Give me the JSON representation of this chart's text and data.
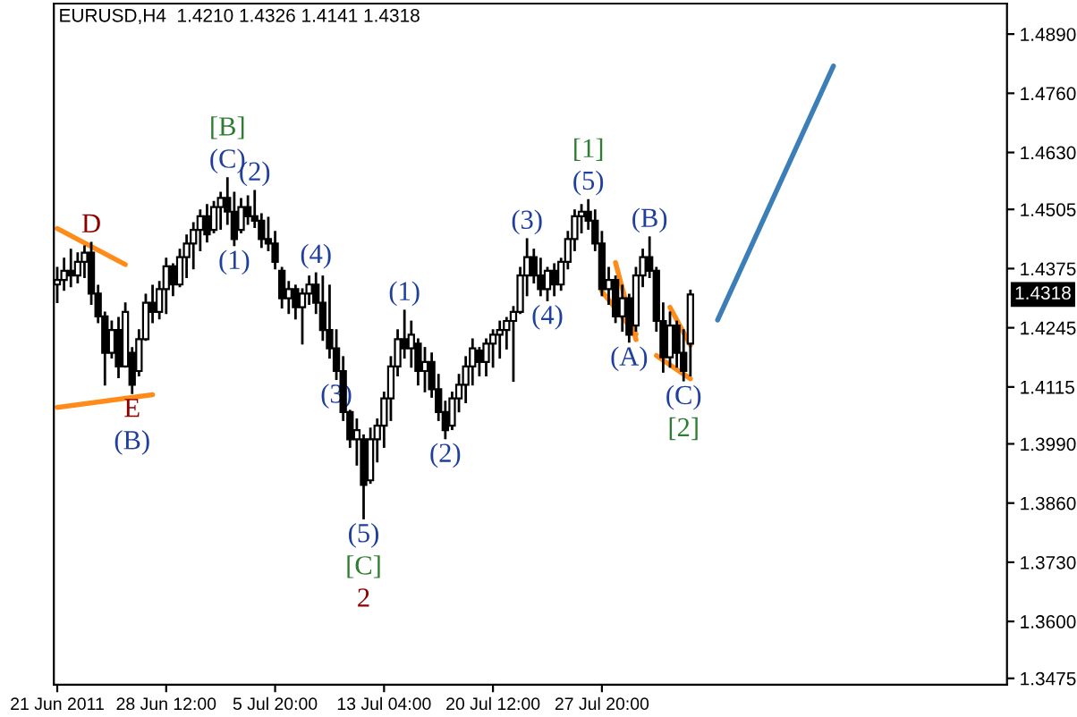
{
  "chart_data": {
    "type": "candlestick",
    "title": "EURUSD,H4  1.4210 1.4326 1.4141 1.4318",
    "color": "#000000",
    "categories": [
      "21 Jun 2011",
      null,
      null,
      null,
      null,
      null,
      null,
      null,
      null,
      null,
      null,
      null,
      null,
      null,
      null,
      null,
      "28 Jun 12:00",
      null,
      null,
      null,
      null,
      null,
      null,
      null,
      null,
      null,
      null,
      null,
      null,
      null,
      null,
      null,
      "5 Jul 20:00",
      null,
      null,
      null,
      null,
      null,
      null,
      null,
      null,
      null,
      null,
      null,
      null,
      null,
      null,
      null,
      "13 Jul 04:00",
      null,
      null,
      null,
      null,
      null,
      null,
      null,
      null,
      null,
      null,
      null,
      null,
      null,
      null,
      null,
      "20 Jul 12:00",
      null,
      null,
      null,
      null,
      null,
      null,
      null,
      null,
      null,
      null,
      null,
      null,
      null,
      null,
      null,
      "27 Jul 20:00",
      null,
      null,
      null,
      null,
      null,
      null,
      null,
      null,
      null,
      null,
      null,
      null,
      null,
      null,
      null,
      null,
      null,
      null,
      null,
      null,
      null,
      null,
      null,
      null,
      null,
      null,
      null,
      null,
      null,
      null,
      null,
      null,
      null,
      null,
      null,
      null,
      null,
      null,
      null,
      null,
      null,
      null,
      null,
      null,
      null,
      null,
      null,
      null,
      null,
      null,
      null,
      null,
      null,
      null,
      null,
      null,
      null,
      null,
      null
    ],
    "ohlc": [
      [
        1.434,
        1.4376,
        1.4302,
        1.435
      ],
      [
        1.435,
        1.4396,
        1.4329,
        1.437
      ],
      [
        1.437,
        1.4416,
        1.4337,
        1.436
      ],
      [
        1.436,
        1.4408,
        1.4345,
        1.439
      ],
      [
        1.439,
        1.4423,
        1.4357,
        1.441
      ],
      [
        1.441,
        1.4431,
        1.4298,
        1.432
      ],
      [
        1.432,
        1.4337,
        1.4258,
        1.427
      ],
      [
        1.427,
        1.4278,
        1.4121,
        1.419
      ],
      [
        1.419,
        1.4258,
        1.418,
        1.424
      ],
      [
        1.424,
        1.4266,
        1.4137,
        1.416
      ],
      [
        1.416,
        1.4298,
        1.416,
        1.428
      ],
      [
        1.419,
        1.42,
        1.4102,
        1.412
      ],
      [
        1.415,
        1.4239,
        1.4141,
        1.422
      ],
      [
        1.422,
        1.4317,
        1.4219,
        1.43
      ],
      [
        1.43,
        1.4337,
        1.4258,
        1.428
      ],
      [
        1.428,
        1.4345,
        1.4266,
        1.433
      ],
      [
        1.433,
        1.4396,
        1.4278,
        1.438
      ],
      [
        1.438,
        1.4384,
        1.4317,
        1.434
      ],
      [
        1.434,
        1.4416,
        1.4337,
        1.44
      ],
      [
        1.44,
        1.4447,
        1.4357,
        1.443
      ],
      [
        1.443,
        1.4474,
        1.4376,
        1.446
      ],
      [
        1.446,
        1.4502,
        1.4416,
        1.449
      ],
      [
        1.449,
        1.4514,
        1.4435,
        1.445
      ],
      [
        1.446,
        1.4521,
        1.4455,
        1.451
      ],
      [
        1.451,
        1.4541,
        1.4463,
        1.453
      ],
      [
        1.453,
        1.4573,
        1.4474,
        1.45
      ],
      [
        1.45,
        1.4541,
        1.4427,
        1.444
      ],
      [
        1.446,
        1.4527,
        1.4455,
        1.451
      ],
      [
        1.451,
        1.4533,
        1.4474,
        1.449
      ],
      [
        1.449,
        1.4545,
        1.4467,
        1.448
      ],
      [
        1.448,
        1.4494,
        1.4423,
        1.444
      ],
      [
        1.444,
        1.4486,
        1.4416,
        1.443
      ],
      [
        1.443,
        1.4455,
        1.4376,
        1.439
      ],
      [
        1.437,
        1.4376,
        1.429,
        1.431
      ],
      [
        1.431,
        1.4345,
        1.4278,
        1.433
      ],
      [
        1.433,
        1.4337,
        1.4266,
        1.429
      ],
      [
        1.429,
        1.4329,
        1.4211,
        1.432
      ],
      [
        1.432,
        1.4357,
        1.4298,
        1.434
      ],
      [
        1.434,
        1.4364,
        1.4278,
        1.43
      ],
      [
        1.43,
        1.4357,
        1.4219,
        1.424
      ],
      [
        1.424,
        1.4337,
        1.418,
        1.42
      ],
      [
        1.42,
        1.4239,
        1.4133,
        1.415
      ],
      [
        1.415,
        1.418,
        1.4043,
        1.406
      ],
      [
        1.406,
        1.4062,
        1.3984,
        1.4
      ],
      [
        1.4,
        1.4043,
        1.3945,
        1.402
      ],
      [
        1.4,
        1.4008,
        1.3827,
        1.39
      ],
      [
        1.391,
        1.4023,
        1.3905,
        1.4
      ],
      [
        1.4,
        1.4043,
        1.3952,
        1.403
      ],
      [
        1.403,
        1.4102,
        1.3984,
        1.409
      ],
      [
        1.409,
        1.418,
        1.4043,
        1.416
      ],
      [
        1.416,
        1.4239,
        1.4141,
        1.422
      ],
      [
        1.422,
        1.4282,
        1.418,
        1.42
      ],
      [
        1.42,
        1.4258,
        1.416,
        1.423
      ],
      [
        1.421,
        1.4219,
        1.4121,
        1.415
      ],
      [
        1.415,
        1.42,
        1.4106,
        1.417
      ],
      [
        1.417,
        1.4188,
        1.4094,
        1.411
      ],
      [
        1.411,
        1.4141,
        1.4043,
        1.406
      ],
      [
        1.406,
        1.4082,
        1.4003,
        1.402
      ],
      [
        1.403,
        1.4102,
        1.4023,
        1.409
      ],
      [
        1.409,
        1.4141,
        1.4062,
        1.412
      ],
      [
        1.412,
        1.418,
        1.4082,
        1.416
      ],
      [
        1.416,
        1.4219,
        1.4121,
        1.42
      ],
      [
        1.4195,
        1.42,
        1.4141,
        1.417
      ],
      [
        1.417,
        1.4219,
        1.4141,
        1.421
      ],
      [
        1.421,
        1.4239,
        1.416,
        1.423
      ],
      [
        1.423,
        1.4258,
        1.418,
        1.424
      ],
      [
        1.424,
        1.4266,
        1.42,
        1.426
      ],
      [
        1.426,
        1.429,
        1.4129,
        1.428
      ],
      [
        1.428,
        1.4376,
        1.4278,
        1.436
      ],
      [
        1.436,
        1.4439,
        1.4317,
        1.44
      ],
      [
        1.44,
        1.4416,
        1.4345,
        1.436
      ],
      [
        1.436,
        1.4396,
        1.4317,
        1.433
      ],
      [
        1.433,
        1.4376,
        1.4306,
        1.437
      ],
      [
        1.437,
        1.4384,
        1.4317,
        1.434
      ],
      [
        1.434,
        1.4396,
        1.4329,
        1.439
      ],
      [
        1.439,
        1.4455,
        1.4376,
        1.444
      ],
      [
        1.444,
        1.4502,
        1.4416,
        1.449
      ],
      [
        1.449,
        1.4514,
        1.4455,
        1.45
      ],
      [
        1.45,
        1.4525,
        1.4463,
        1.448
      ],
      [
        1.448,
        1.4502,
        1.4416,
        1.443
      ],
      [
        1.443,
        1.4455,
        1.4317,
        1.433
      ],
      [
        1.433,
        1.4376,
        1.4298,
        1.435
      ],
      [
        1.435,
        1.4357,
        1.4258,
        1.427
      ],
      [
        1.427,
        1.4337,
        1.4239,
        1.431
      ],
      [
        1.431,
        1.4317,
        1.4215,
        1.423
      ],
      [
        1.425,
        1.4376,
        1.4239,
        1.436
      ],
      [
        1.436,
        1.4416,
        1.4337,
        1.44
      ],
      [
        1.44,
        1.4443,
        1.4357,
        1.437
      ],
      [
        1.437,
        1.4376,
        1.4239,
        1.426
      ],
      [
        1.426,
        1.4298,
        1.4149,
        1.418
      ],
      [
        1.418,
        1.4278,
        1.416,
        1.425
      ],
      [
        1.425,
        1.4258,
        1.416,
        1.419
      ],
      [
        1.419,
        1.4239,
        1.413,
        1.415
      ],
      [
        1.421,
        1.4326,
        1.4141,
        1.4318
      ],
      null,
      null,
      null,
      null,
      null,
      null,
      null,
      null,
      null,
      null,
      null,
      null,
      null,
      null,
      null,
      null,
      null,
      null,
      null,
      null,
      null,
      null,
      null,
      null,
      null,
      null,
      null,
      null,
      null,
      null,
      null,
      null,
      null,
      null,
      null,
      null,
      null,
      null,
      null,
      null,
      null,
      null,
      null,
      null,
      null,
      null
    ],
    "series": [
      {
        "type": "line",
        "color": "#ff8c1a",
        "values": [
          1.4463,
          null,
          null,
          null,
          null,
          null,
          null,
          null,
          null,
          null,
          1.4384,
          null,
          null,
          null,
          null,
          null,
          null,
          null,
          null,
          null,
          null,
          null,
          null,
          null,
          null,
          null,
          null,
          null,
          null,
          null,
          null,
          null,
          null,
          null,
          null,
          null,
          null,
          null,
          null,
          null,
          null,
          null,
          null,
          null,
          null,
          null,
          null,
          null,
          null,
          null,
          null,
          null,
          null,
          null,
          null,
          null,
          null,
          null,
          null,
          null,
          null,
          null,
          null,
          null,
          null,
          null,
          null,
          null,
          null,
          null,
          null,
          null,
          null,
          null,
          null,
          null,
          null,
          null,
          null,
          null,
          null,
          null,
          null,
          null,
          null,
          null,
          null,
          null,
          null,
          null,
          null,
          null,
          null,
          null,
          null,
          null,
          null,
          null,
          null,
          null,
          null,
          null,
          null,
          null,
          null,
          null,
          null,
          null,
          null,
          null,
          null,
          null,
          null,
          null,
          null,
          null,
          null,
          null,
          null,
          null,
          null,
          null,
          null,
          null,
          null,
          null,
          null,
          null,
          null,
          null,
          null,
          null,
          null,
          null,
          null,
          null,
          null,
          null,
          null,
          null
        ]
      },
      {
        "type": "line",
        "color": "#ff8c1a",
        "values": [
          1.407,
          null,
          null,
          null,
          null,
          null,
          null,
          null,
          null,
          null,
          null,
          null,
          null,
          null,
          1.4098,
          null,
          null,
          null,
          null,
          null,
          null,
          null,
          null,
          null,
          null,
          null,
          null,
          null,
          null,
          null,
          null,
          null,
          null,
          null,
          null,
          null,
          null,
          null,
          null,
          null,
          null,
          null,
          null,
          null,
          null,
          null,
          null,
          null,
          null,
          null,
          null,
          null,
          null,
          null,
          null,
          null,
          null,
          null,
          null,
          null,
          null,
          null,
          null,
          null,
          null,
          null,
          null,
          null,
          null,
          null,
          null,
          null,
          null,
          null,
          null,
          null,
          null,
          null,
          null,
          null,
          null,
          null,
          null,
          null,
          null,
          null,
          null,
          null,
          null,
          null,
          null,
          null,
          null,
          null,
          null,
          null,
          null,
          null,
          null,
          null,
          null,
          null,
          null,
          null,
          null,
          null,
          null,
          null,
          null,
          null,
          null,
          null,
          null,
          null,
          null,
          null,
          null,
          null,
          null,
          null,
          null,
          null,
          null,
          null,
          null,
          null,
          null,
          null,
          null,
          null,
          null,
          null,
          null,
          null,
          null,
          null,
          null,
          null,
          null,
          null
        ]
      },
      {
        "type": "line",
        "color": "#ff8c1a",
        "values": [
          null,
          null,
          null,
          null,
          null,
          null,
          null,
          null,
          null,
          null,
          null,
          null,
          null,
          null,
          null,
          null,
          null,
          null,
          null,
          null,
          null,
          null,
          null,
          null,
          null,
          null,
          null,
          null,
          null,
          null,
          null,
          null,
          null,
          null,
          null,
          null,
          null,
          null,
          null,
          null,
          null,
          null,
          null,
          null,
          null,
          null,
          null,
          null,
          null,
          null,
          null,
          null,
          null,
          null,
          null,
          null,
          null,
          null,
          null,
          null,
          null,
          null,
          null,
          null,
          null,
          null,
          null,
          null,
          null,
          null,
          null,
          null,
          null,
          null,
          null,
          null,
          null,
          null,
          null,
          null,
          null,
          null,
          1.4388,
          null,
          null,
          1.4219,
          null,
          null,
          null,
          null,
          null,
          null,
          null,
          null,
          null,
          null,
          null,
          null,
          null,
          null,
          null,
          null,
          null,
          null,
          null,
          null,
          null,
          null,
          null,
          null,
          null,
          null,
          null,
          null,
          null,
          null,
          null,
          null,
          null,
          null,
          null,
          null,
          null,
          null,
          null,
          null,
          null,
          null,
          null,
          null,
          null,
          null,
          null,
          null,
          null,
          null,
          null,
          null,
          null,
          null
        ]
      },
      {
        "type": "line",
        "color": "#ff8c1a",
        "values": [
          null,
          null,
          null,
          null,
          null,
          null,
          null,
          null,
          null,
          null,
          null,
          null,
          null,
          null,
          null,
          null,
          null,
          null,
          null,
          null,
          null,
          null,
          null,
          null,
          null,
          null,
          null,
          null,
          null,
          null,
          null,
          null,
          null,
          null,
          null,
          null,
          null,
          null,
          null,
          null,
          null,
          null,
          null,
          null,
          null,
          null,
          null,
          null,
          null,
          null,
          null,
          null,
          null,
          null,
          null,
          null,
          null,
          null,
          null,
          null,
          null,
          null,
          null,
          null,
          null,
          null,
          null,
          null,
          null,
          null,
          null,
          null,
          null,
          null,
          null,
          null,
          null,
          null,
          null,
          null,
          1.4325,
          null,
          null,
          null,
          null,
          1.4231,
          null,
          null,
          null,
          null,
          null,
          null,
          null,
          null,
          null,
          null,
          null,
          null,
          null,
          null,
          null,
          null,
          null,
          null,
          null,
          null,
          null,
          null,
          null,
          null,
          null,
          null,
          null,
          null,
          null,
          null,
          null,
          null,
          null,
          null,
          null,
          null,
          null,
          null,
          null,
          null,
          null,
          null,
          null,
          null,
          null,
          null,
          null,
          null,
          null,
          null,
          null,
          null,
          null,
          null
        ]
      },
      {
        "type": "line",
        "color": "#ff8c1a",
        "values": [
          null,
          null,
          null,
          null,
          null,
          null,
          null,
          null,
          null,
          null,
          null,
          null,
          null,
          null,
          null,
          null,
          null,
          null,
          null,
          null,
          null,
          null,
          null,
          null,
          null,
          null,
          null,
          null,
          null,
          null,
          null,
          null,
          null,
          null,
          null,
          null,
          null,
          null,
          null,
          null,
          null,
          null,
          null,
          null,
          null,
          null,
          null,
          null,
          null,
          null,
          null,
          null,
          null,
          null,
          null,
          null,
          null,
          null,
          null,
          null,
          null,
          null,
          null,
          null,
          null,
          null,
          null,
          null,
          null,
          null,
          null,
          null,
          null,
          null,
          null,
          null,
          null,
          null,
          null,
          null,
          null,
          null,
          null,
          null,
          null,
          null,
          null,
          null,
          null,
          null,
          1.429,
          null,
          null,
          1.4207,
          null,
          null,
          null,
          null,
          null,
          null,
          null,
          null,
          null,
          null,
          null,
          null,
          null,
          null,
          null,
          null,
          null,
          null,
          null,
          null,
          null,
          null,
          null,
          null,
          null,
          null,
          null,
          null,
          null,
          null,
          null,
          null,
          null,
          null,
          null,
          null,
          null,
          null,
          null,
          null,
          null,
          null,
          null,
          null,
          null,
          null
        ]
      },
      {
        "type": "line",
        "color": "#ff8c1a",
        "values": [
          null,
          null,
          null,
          null,
          null,
          null,
          null,
          null,
          null,
          null,
          null,
          null,
          null,
          null,
          null,
          null,
          null,
          null,
          null,
          null,
          null,
          null,
          null,
          null,
          null,
          null,
          null,
          null,
          null,
          null,
          null,
          null,
          null,
          null,
          null,
          null,
          null,
          null,
          null,
          null,
          null,
          null,
          null,
          null,
          null,
          null,
          null,
          null,
          null,
          null,
          null,
          null,
          null,
          null,
          null,
          null,
          null,
          null,
          null,
          null,
          null,
          null,
          null,
          null,
          null,
          null,
          null,
          null,
          null,
          null,
          null,
          null,
          null,
          null,
          null,
          null,
          null,
          null,
          null,
          null,
          null,
          null,
          null,
          null,
          null,
          null,
          null,
          null,
          1.4184,
          null,
          null,
          null,
          null,
          1.4133,
          null,
          null,
          null,
          null,
          null,
          null,
          null,
          null,
          null,
          null,
          null,
          null,
          null,
          null,
          null,
          null,
          null,
          null,
          null,
          null,
          null,
          null,
          null,
          null,
          null,
          null,
          null,
          null,
          null,
          null,
          null,
          null,
          null,
          null,
          null,
          null,
          null,
          null,
          null,
          null,
          null,
          null,
          null,
          null,
          null,
          null
        ]
      },
      {
        "type": "line",
        "color": "#3c7fb8",
        "values": [
          null,
          null,
          null,
          null,
          null,
          null,
          null,
          null,
          null,
          null,
          null,
          null,
          null,
          null,
          null,
          null,
          null,
          null,
          null,
          null,
          null,
          null,
          null,
          null,
          null,
          null,
          null,
          null,
          null,
          null,
          null,
          null,
          null,
          null,
          null,
          null,
          null,
          null,
          null,
          null,
          null,
          null,
          null,
          null,
          null,
          null,
          null,
          null,
          null,
          null,
          null,
          null,
          null,
          null,
          null,
          null,
          null,
          null,
          null,
          null,
          null,
          null,
          null,
          null,
          null,
          null,
          null,
          null,
          null,
          null,
          null,
          null,
          null,
          null,
          null,
          null,
          null,
          null,
          null,
          null,
          null,
          null,
          null,
          null,
          null,
          null,
          null,
          null,
          null,
          null,
          null,
          null,
          null,
          null,
          null,
          null,
          null,
          1.4262,
          null,
          null,
          null,
          null,
          null,
          null,
          null,
          null,
          null,
          null,
          null,
          null,
          null,
          null,
          null,
          null,
          1.482,
          null,
          null,
          null,
          null,
          null,
          null,
          null,
          null,
          null,
          null,
          null,
          null,
          null,
          null,
          null,
          null,
          null,
          null,
          null,
          null,
          null,
          null,
          null,
          null,
          null
        ]
      }
    ],
    "ylim": [
      1.3461,
      1.4957
    ],
    "yticks": [
      {
        "value": 1.489,
        "label": "1.4890"
      },
      {
        "value": 1.476,
        "label": "1.4760"
      },
      {
        "value": 1.463,
        "label": "1.4630"
      },
      {
        "value": 1.4505,
        "label": "1.4505"
      },
      {
        "value": 1.4375,
        "label": "1.4375"
      },
      {
        "value": 1.4245,
        "label": "1.4245"
      },
      {
        "value": 1.4115,
        "label": "1.4115"
      },
      {
        "value": 1.399,
        "label": "1.3990"
      },
      {
        "value": 1.386,
        "label": "1.3860"
      },
      {
        "value": 1.373,
        "label": "1.3730"
      },
      {
        "value": 1.36,
        "label": "1.3600"
      },
      {
        "value": 1.3475,
        "label": "1.3475"
      }
    ],
    "grid": false,
    "annotations": [
      {
        "text": "(C)",
        "y": 1.4573
      },
      {
        "text": "[B]",
        "y": 1.4573
      },
      {
        "text": "(2)",
        "y": 1.4545
      },
      {
        "text": "(1)",
        "y": 1.4427
      },
      {
        "text": "D",
        "y": 1.4431
      },
      {
        "text": "E",
        "y": 1.4102
      },
      {
        "text": "(B)",
        "y": 1.4102
      },
      {
        "text": "(4)",
        "y": 1.4364
      },
      {
        "text": "(3)",
        "y": 1.4133
      },
      {
        "text": "(5)",
        "y": 1.3827
      },
      {
        "text": "[C]",
        "y": 1.3827
      },
      {
        "text": "2",
        "y": 1.3827
      },
      {
        "text": "(1)",
        "y": 1.4282
      },
      {
        "text": "(2)",
        "y": 1.4003
      },
      {
        "text": "(3)",
        "y": 1.4439
      },
      {
        "text": "(4)",
        "y": 1.4306
      },
      {
        "text": "(5)",
        "y": 1.4525
      },
      {
        "text": "[1]",
        "y": 1.4525
      },
      {
        "text": "(B)",
        "y": 1.4443
      },
      {
        "text": "(A)",
        "y": 1.4215
      },
      {
        "text": "(C)",
        "y": 1.413
      },
      {
        "text": "[2]",
        "y": 1.413
      },
      {
        "text": "1.4318",
        "y": 1.4318
      }
    ]
  }
}
